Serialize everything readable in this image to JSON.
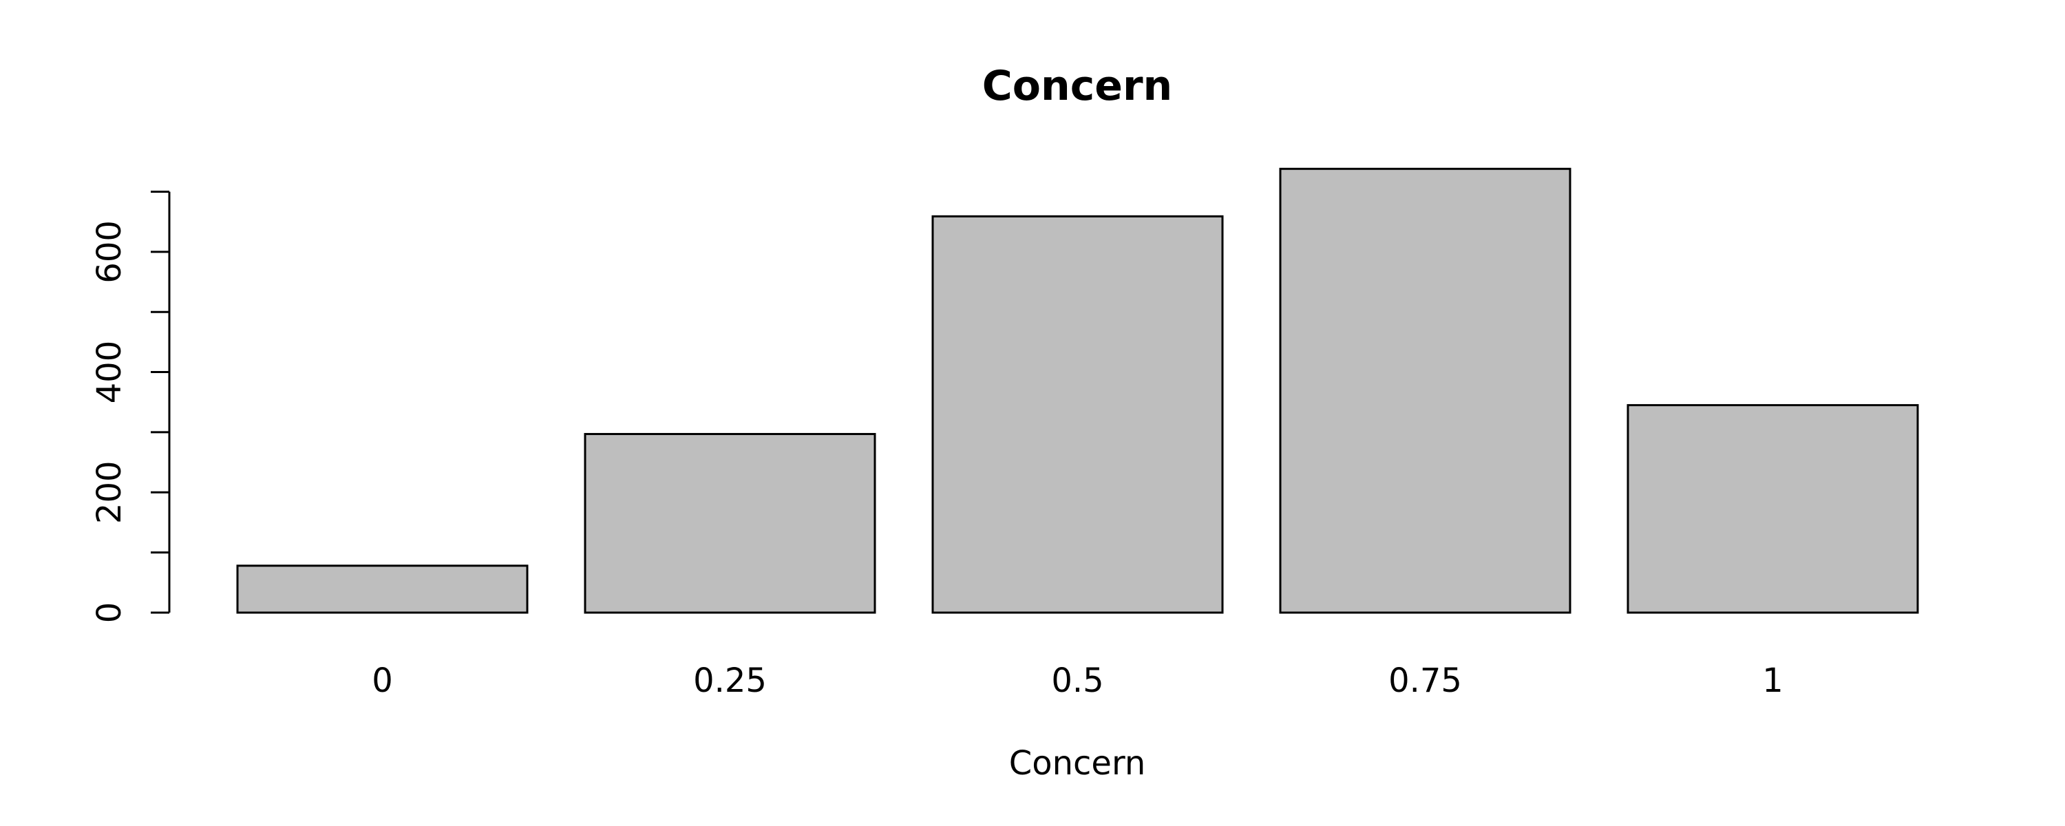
{
  "chart_data": {
    "type": "bar",
    "title": "Concern",
    "xlabel": "Concern",
    "ylabel": "",
    "categories": [
      "0",
      "0.25",
      "0.5",
      "0.75",
      "1"
    ],
    "values": [
      78,
      297,
      659,
      738,
      345
    ],
    "ylim": [
      0,
      700
    ],
    "y_ticks": [
      0,
      100,
      200,
      300,
      400,
      500,
      600,
      700
    ],
    "y_tick_labels": [
      "0",
      "200",
      "400",
      "600"
    ],
    "bar_color": "#bebebe",
    "grid": false,
    "legend": "none"
  }
}
